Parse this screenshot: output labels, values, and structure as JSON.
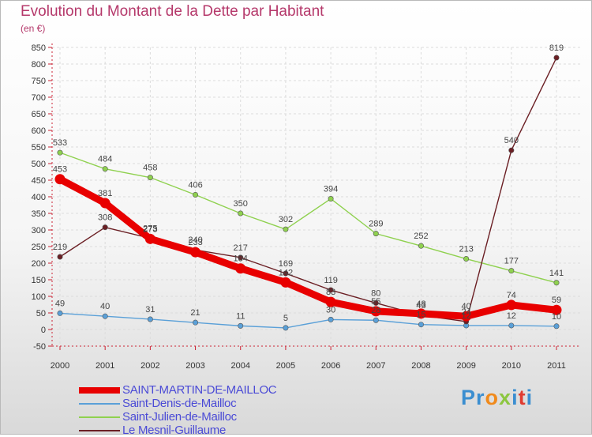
{
  "header": {
    "title": "Evolution du Montant de la Dette par Habitant",
    "unit": "(en €)"
  },
  "logo": {
    "text": "Proxiti",
    "letter_colors": [
      "#3b8ed0",
      "#3b8ed0",
      "#f08a1c",
      "#8cc63f",
      "#3b8ed0",
      "#e03c31",
      "#3b8ed0"
    ]
  },
  "chart_data": {
    "type": "line",
    "title": "Evolution du Montant de la Dette par Habitant",
    "ylabel": "(en €)",
    "xlabel": "",
    "x": [
      "2000",
      "2001",
      "2002",
      "2003",
      "2004",
      "2005",
      "2006",
      "2007",
      "2008",
      "2009",
      "2010",
      "2011"
    ],
    "ylim": [
      -50,
      850
    ],
    "yticks": [
      -50,
      0,
      50,
      100,
      150,
      200,
      250,
      300,
      350,
      400,
      450,
      500,
      550,
      600,
      650,
      700,
      750,
      800,
      850
    ],
    "grid": true,
    "legend_position": "bottom-left",
    "series": [
      {
        "name": "SAINT-MARTIN-DE-MAILLOC",
        "color": "#e80000",
        "emphasis": "thick",
        "values": [
          453,
          381,
          273,
          233,
          184,
          142,
          83,
          55,
          48,
          40,
          74,
          59
        ]
      },
      {
        "name": "Saint-Denis-de-Mailloc",
        "color": "#5aa0d8",
        "values": [
          49,
          40,
          31,
          21,
          11,
          5,
          30,
          28,
          15,
          12,
          12,
          10
        ]
      },
      {
        "name": "Saint-Julien-de-Mailloc",
        "color": "#8fd14f",
        "values": [
          533,
          484,
          458,
          406,
          350,
          302,
          394,
          289,
          252,
          213,
          177,
          141
        ]
      },
      {
        "name": "Le Mesnil-Guillaume",
        "color": "#6b1f24",
        "values": [
          219,
          308,
          275,
          240,
          217,
          169,
          119,
          80,
          43,
          24,
          540,
          819
        ]
      }
    ]
  }
}
